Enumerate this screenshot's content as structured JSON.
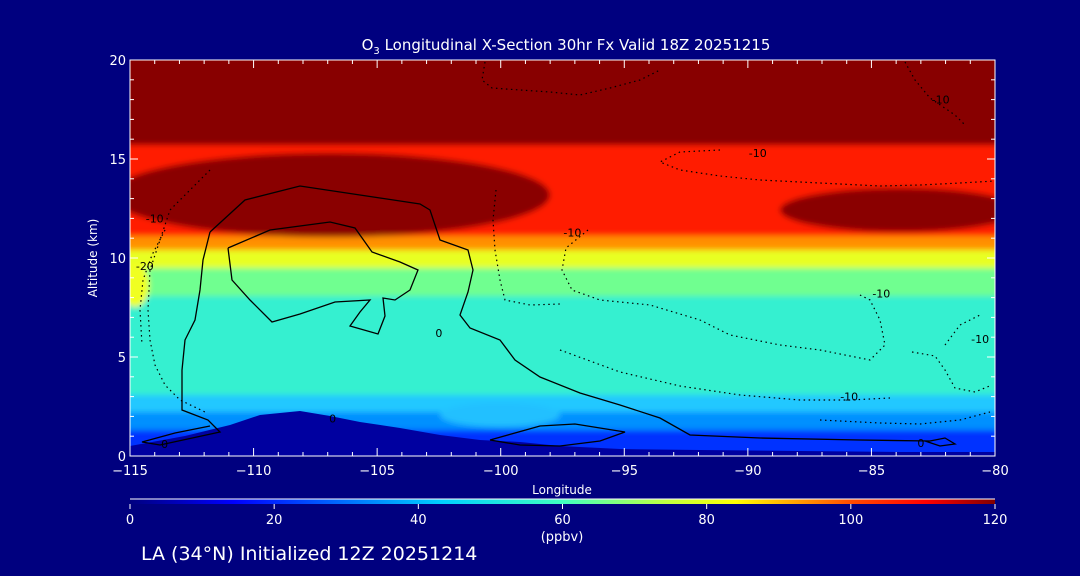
{
  "chart_data": {
    "type": "heatmap",
    "title_prefix": "O",
    "title_subscript": "3",
    "title_rest": " Longitudinal X-Section 30hr  Fx Valid 18Z 20251215",
    "xlabel": "Longitude",
    "ylabel": "Altitude (km)",
    "xlim": [
      -115,
      -80
    ],
    "ylim": [
      0,
      20
    ],
    "x_ticks": [
      -115,
      -110,
      -105,
      -100,
      -95,
      -90,
      -85,
      -80
    ],
    "x_tick_labels": [
      "−115",
      "−110",
      "−105",
      "−100",
      "−95",
      "−90",
      "−85",
      "−80"
    ],
    "y_ticks": [
      0,
      5,
      10,
      15,
      20
    ],
    "y_tick_labels": [
      "0",
      "5",
      "10",
      "15",
      "20"
    ],
    "colorbar": {
      "range": [
        0,
        120
      ],
      "ticks": [
        0,
        20,
        40,
        60,
        80,
        100,
        120
      ],
      "tick_labels": [
        "0",
        "20",
        "40",
        "60",
        "80",
        "100",
        "120"
      ],
      "units": "(ppbv)"
    },
    "contour_labels": [
      {
        "text": "0",
        "x": -113.6,
        "y": 0.6
      },
      {
        "text": "0",
        "x": -106.8,
        "y": 1.9
      },
      {
        "text": "0",
        "x": -102.5,
        "y": 6.2
      },
      {
        "text": "0",
        "x": -83.0,
        "y": 0.65
      },
      {
        "text": "-10",
        "x": -97.1,
        "y": 11.3
      },
      {
        "text": "-10",
        "x": -89.6,
        "y": 15.3
      },
      {
        "text": "-10",
        "x": -82.2,
        "y": 18.0
      },
      {
        "text": "-10",
        "x": -84.6,
        "y": 8.2
      },
      {
        "text": "-10",
        "x": -80.6,
        "y": 5.9
      },
      {
        "text": "-10",
        "x": -85.9,
        "y": 3.0
      },
      {
        "text": "-10",
        "x": -114.0,
        "y": 12.0
      },
      {
        "text": "-20",
        "x": -114.4,
        "y": 9.6
      }
    ],
    "grid": false
  },
  "footer": "LA (34°N) Initialized 12Z 20251214",
  "colors": {
    "background": "#00007f",
    "axis": "#ffffff",
    "contour": "#000000"
  }
}
